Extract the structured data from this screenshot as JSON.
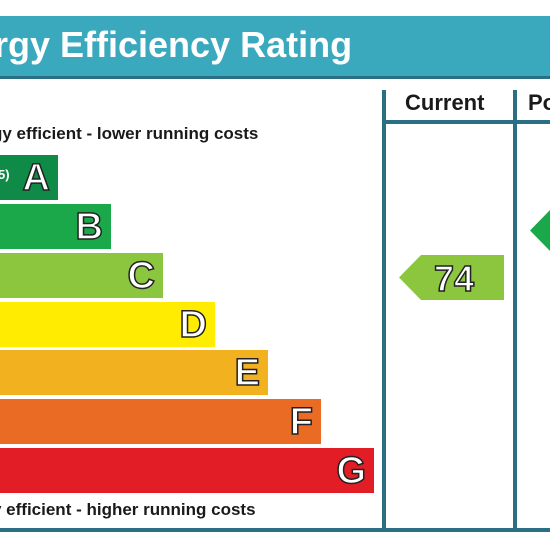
{
  "header": {
    "title": "rgy Efficiency Rating"
  },
  "captions": {
    "top": "gy efficient - lower running costs",
    "bottom": "y efficient - higher running costs"
  },
  "columns": {
    "current": "Current",
    "potential": "Po"
  },
  "bands": [
    {
      "letter": "A",
      "range_fragment": "5)",
      "color": "#0f8a47"
    },
    {
      "letter": "B",
      "color": "#1ba84a"
    },
    {
      "letter": "C",
      "color": "#8cc63f"
    },
    {
      "letter": "D",
      "color": "#ffec00"
    },
    {
      "letter": "E",
      "color": "#f2b11f"
    },
    {
      "letter": "F",
      "color": "#ea6b23"
    },
    {
      "letter": "G",
      "color": "#e31d25"
    }
  ],
  "current_rating": {
    "value": "74",
    "band": "C",
    "color": "#8cc63f"
  },
  "potential_rating": {
    "band": "B",
    "color": "#1ba84a"
  },
  "colors": {
    "header": "#3ba9bd",
    "divider": "#2a6f84"
  }
}
